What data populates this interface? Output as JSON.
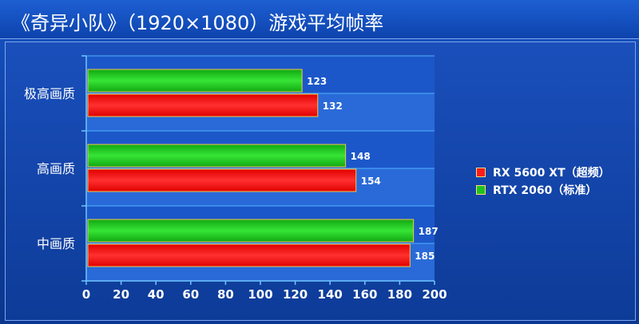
{
  "chart_data": {
    "type": "bar",
    "orientation": "horizontal",
    "title": "《奇异小队》（1920×1080）游戏平均帧率",
    "categories": [
      "极高画质",
      "高画质",
      "中画质"
    ],
    "series": [
      {
        "name": "RTX 2060（标准）",
        "color": "#1fc41f",
        "values": [
          123,
          148,
          187
        ]
      },
      {
        "name": "RX 5600 XT（超频）",
        "color": "#ff1a1a",
        "values": [
          132,
          154,
          185
        ]
      }
    ],
    "legend_order": [
      1,
      0
    ],
    "x_ticks": [
      0,
      20,
      40,
      60,
      80,
      100,
      120,
      140,
      160,
      180,
      200
    ],
    "xlim": [
      0,
      200
    ],
    "legend_position": "right",
    "grid": true
  }
}
